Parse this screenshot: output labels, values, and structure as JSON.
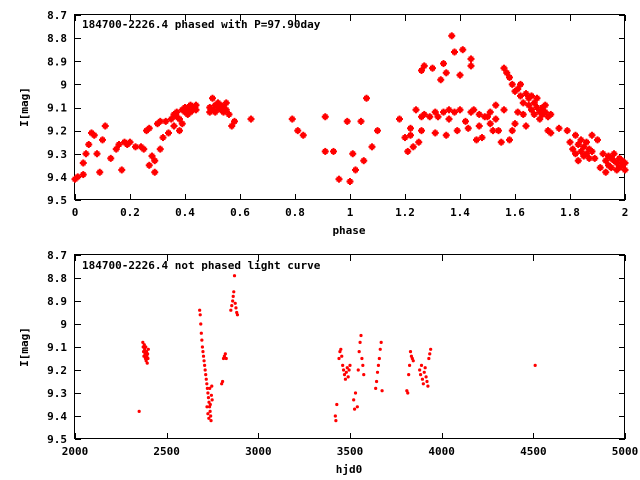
{
  "chart_data": [
    {
      "type": "scatter",
      "title": "184700-2226.4 phased with P=97.90day",
      "xlabel": "phase",
      "ylabel": "I[mag]",
      "xlim": [
        0,
        2
      ],
      "ylim": [
        9.5,
        8.7
      ],
      "y_inverted": true,
      "x_ticks": [
        0,
        0.2,
        0.4,
        0.6,
        0.8,
        1,
        1.2,
        1.4,
        1.6,
        1.8,
        2
      ],
      "x_tick_labels": [
        "0",
        "0.2",
        "0.4",
        "0.6",
        "0.8",
        "1",
        "1.2",
        "1.4",
        "1.6",
        "1.8",
        "2"
      ],
      "y_ticks": [
        8.7,
        8.8,
        8.9,
        9.0,
        9.1,
        9.2,
        9.3,
        9.4,
        9.5
      ],
      "y_tick_labels": [
        "8.7",
        "8.8",
        "8.9",
        "9",
        "9.1",
        "9.2",
        "9.3",
        "9.4",
        "9.5"
      ],
      "grid": false,
      "marker_color": "#ff0000",
      "marker": "plus",
      "points": [
        [
          0.0,
          9.41
        ],
        [
          0.01,
          9.4
        ],
        [
          0.03,
          9.39
        ],
        [
          0.03,
          9.34
        ],
        [
          0.04,
          9.3
        ],
        [
          0.05,
          9.26
        ],
        [
          0.06,
          9.21
        ],
        [
          0.07,
          9.22
        ],
        [
          0.08,
          9.3
        ],
        [
          0.09,
          9.38
        ],
        [
          0.1,
          9.24
        ],
        [
          0.11,
          9.18
        ],
        [
          0.13,
          9.32
        ],
        [
          0.15,
          9.28
        ],
        [
          0.16,
          9.26
        ],
        [
          0.17,
          9.37
        ],
        [
          0.18,
          9.25
        ],
        [
          0.19,
          9.26
        ],
        [
          0.2,
          9.25
        ],
        [
          0.22,
          9.27
        ],
        [
          0.24,
          9.27
        ],
        [
          0.25,
          9.28
        ],
        [
          0.26,
          9.2
        ],
        [
          0.27,
          9.19
        ],
        [
          0.27,
          9.35
        ],
        [
          0.28,
          9.31
        ],
        [
          0.29,
          9.33
        ],
        [
          0.29,
          9.38
        ],
        [
          0.3,
          9.17
        ],
        [
          0.31,
          9.16
        ],
        [
          0.31,
          9.28
        ],
        [
          0.32,
          9.23
        ],
        [
          0.33,
          9.16
        ],
        [
          0.34,
          9.21
        ],
        [
          0.35,
          9.15
        ],
        [
          0.36,
          9.13
        ],
        [
          0.36,
          9.18
        ],
        [
          0.37,
          9.12
        ],
        [
          0.37,
          9.14
        ],
        [
          0.38,
          9.15
        ],
        [
          0.38,
          9.2
        ],
        [
          0.39,
          9.17
        ],
        [
          0.39,
          9.11
        ],
        [
          0.4,
          9.1
        ],
        [
          0.4,
          9.12
        ],
        [
          0.41,
          9.1
        ],
        [
          0.41,
          9.13
        ],
        [
          0.42,
          9.09
        ],
        [
          0.42,
          9.12
        ],
        [
          0.43,
          9.1
        ],
        [
          0.43,
          9.11
        ],
        [
          0.44,
          9.09
        ],
        [
          0.44,
          9.11
        ],
        [
          0.49,
          9.1
        ],
        [
          0.49,
          9.12
        ],
        [
          0.5,
          9.06
        ],
        [
          0.5,
          9.11
        ],
        [
          0.51,
          9.09
        ],
        [
          0.51,
          9.12
        ],
        [
          0.52,
          9.1
        ],
        [
          0.52,
          9.08
        ],
        [
          0.53,
          9.09
        ],
        [
          0.53,
          9.11
        ],
        [
          0.54,
          9.1
        ],
        [
          0.54,
          9.12
        ],
        [
          0.55,
          9.08
        ],
        [
          0.55,
          9.11
        ],
        [
          0.56,
          9.13
        ],
        [
          0.57,
          9.18
        ],
        [
          0.58,
          9.16
        ],
        [
          0.64,
          9.15
        ],
        [
          0.79,
          9.15
        ],
        [
          0.81,
          9.2
        ],
        [
          0.83,
          9.22
        ],
        [
          0.91,
          9.29
        ],
        [
          0.91,
          9.14
        ],
        [
          0.94,
          9.29
        ],
        [
          0.96,
          9.41
        ],
        [
          0.99,
          9.16
        ],
        [
          1.0,
          9.42
        ],
        [
          1.01,
          9.3
        ],
        [
          1.02,
          9.37
        ],
        [
          1.04,
          9.16
        ],
        [
          1.05,
          9.33
        ],
        [
          1.06,
          9.06
        ],
        [
          1.08,
          9.27
        ],
        [
          1.1,
          9.2
        ],
        [
          1.18,
          9.15
        ],
        [
          1.2,
          9.23
        ],
        [
          1.21,
          9.29
        ],
        [
          1.22,
          9.19
        ],
        [
          1.22,
          9.22
        ],
        [
          1.23,
          9.27
        ],
        [
          1.24,
          9.11
        ],
        [
          1.25,
          9.25
        ],
        [
          1.26,
          9.2
        ],
        [
          1.26,
          9.14
        ],
        [
          1.26,
          8.94
        ],
        [
          1.27,
          9.13
        ],
        [
          1.27,
          8.92
        ],
        [
          1.29,
          9.14
        ],
        [
          1.3,
          8.93
        ],
        [
          1.31,
          9.21
        ],
        [
          1.31,
          9.12
        ],
        [
          1.32,
          9.14
        ],
        [
          1.33,
          8.98
        ],
        [
          1.34,
          8.91
        ],
        [
          1.34,
          9.12
        ],
        [
          1.35,
          9.22
        ],
        [
          1.35,
          8.95
        ],
        [
          1.36,
          9.15
        ],
        [
          1.36,
          9.11
        ],
        [
          1.37,
          8.79
        ],
        [
          1.38,
          9.12
        ],
        [
          1.38,
          8.86
        ],
        [
          1.39,
          9.2
        ],
        [
          1.4,
          8.96
        ],
        [
          1.4,
          9.11
        ],
        [
          1.41,
          8.85
        ],
        [
          1.42,
          9.16
        ],
        [
          1.43,
          9.19
        ],
        [
          1.44,
          8.89
        ],
        [
          1.44,
          9.12
        ],
        [
          1.44,
          8.92
        ],
        [
          1.45,
          9.11
        ],
        [
          1.46,
          9.24
        ],
        [
          1.47,
          9.18
        ],
        [
          1.47,
          9.13
        ],
        [
          1.48,
          9.23
        ],
        [
          1.49,
          9.14
        ],
        [
          1.5,
          9.14
        ],
        [
          1.51,
          9.12
        ],
        [
          1.51,
          9.17
        ],
        [
          1.52,
          9.2
        ],
        [
          1.53,
          9.15
        ],
        [
          1.53,
          9.09
        ],
        [
          1.54,
          9.2
        ],
        [
          1.55,
          9.25
        ],
        [
          1.56,
          9.11
        ],
        [
          1.56,
          8.93
        ],
        [
          1.57,
          8.95
        ],
        [
          1.58,
          9.24
        ],
        [
          1.58,
          8.97
        ],
        [
          1.59,
          9.2
        ],
        [
          1.59,
          9.0
        ],
        [
          1.6,
          9.03
        ],
        [
          1.6,
          9.17
        ],
        [
          1.61,
          9.02
        ],
        [
          1.61,
          9.12
        ],
        [
          1.62,
          9.0
        ],
        [
          1.62,
          9.05
        ],
        [
          1.63,
          9.08
        ],
        [
          1.63,
          9.13
        ],
        [
          1.64,
          9.04
        ],
        [
          1.64,
          9.18
        ],
        [
          1.65,
          9.06
        ],
        [
          1.65,
          9.09
        ],
        [
          1.66,
          9.05
        ],
        [
          1.66,
          9.11
        ],
        [
          1.67,
          9.08
        ],
        [
          1.67,
          9.13
        ],
        [
          1.68,
          9.1
        ],
        [
          1.68,
          9.06
        ],
        [
          1.69,
          9.12
        ],
        [
          1.69,
          9.15
        ],
        [
          1.7,
          9.1
        ],
        [
          1.7,
          9.13
        ],
        [
          1.71,
          9.09
        ],
        [
          1.71,
          9.12
        ],
        [
          1.72,
          9.14
        ],
        [
          1.72,
          9.2
        ],
        [
          1.73,
          9.13
        ],
        [
          1.73,
          9.21
        ],
        [
          1.76,
          9.19
        ],
        [
          1.79,
          9.2
        ],
        [
          1.8,
          9.25
        ],
        [
          1.81,
          9.28
        ],
        [
          1.82,
          9.22
        ],
        [
          1.82,
          9.3
        ],
        [
          1.83,
          9.26
        ],
        [
          1.83,
          9.33
        ],
        [
          1.84,
          9.24
        ],
        [
          1.84,
          9.29
        ],
        [
          1.85,
          9.27
        ],
        [
          1.85,
          9.31
        ],
        [
          1.86,
          9.25
        ],
        [
          1.86,
          9.3
        ],
        [
          1.87,
          9.28
        ],
        [
          1.87,
          9.32
        ],
        [
          1.88,
          9.22
        ],
        [
          1.88,
          9.29
        ],
        [
          1.89,
          9.32
        ],
        [
          1.9,
          9.24
        ],
        [
          1.91,
          9.36
        ],
        [
          1.92,
          9.3
        ],
        [
          1.93,
          9.33
        ],
        [
          1.93,
          9.38
        ],
        [
          1.94,
          9.31
        ],
        [
          1.94,
          9.35
        ],
        [
          1.95,
          9.32
        ],
        [
          1.95,
          9.36
        ],
        [
          1.96,
          9.33
        ],
        [
          1.96,
          9.3
        ],
        [
          1.97,
          9.34
        ],
        [
          1.97,
          9.37
        ],
        [
          1.98,
          9.32
        ],
        [
          1.98,
          9.36
        ],
        [
          1.99,
          9.33
        ],
        [
          1.99,
          9.35
        ],
        [
          2.0,
          9.34
        ],
        [
          2.0,
          9.37
        ]
      ]
    },
    {
      "type": "scatter",
      "title": "184700-2226.4 not phased light curve",
      "xlabel": "hjd0",
      "ylabel": "I[mag]",
      "xlim": [
        2000,
        5000
      ],
      "ylim": [
        9.5,
        8.7
      ],
      "y_inverted": true,
      "x_ticks": [
        2000,
        2500,
        3000,
        3500,
        4000,
        4500,
        5000
      ],
      "x_tick_labels": [
        "2000",
        "2500",
        "3000",
        "3500",
        "4000",
        "4500",
        "5000"
      ],
      "y_ticks": [
        8.7,
        8.8,
        8.9,
        9.0,
        9.1,
        9.2,
        9.3,
        9.4,
        9.5
      ],
      "y_tick_labels": [
        "8.7",
        "8.8",
        "8.9",
        "9",
        "9.1",
        "9.2",
        "9.3",
        "9.4",
        "9.5"
      ],
      "grid": false,
      "marker_color": "#ff0000",
      "marker": "dot",
      "points": [
        [
          2350,
          9.38
        ],
        [
          2370,
          9.08
        ],
        [
          2372,
          9.1
        ],
        [
          2374,
          9.12
        ],
        [
          2376,
          9.14
        ],
        [
          2378,
          9.09
        ],
        [
          2380,
          9.11
        ],
        [
          2382,
          9.13
        ],
        [
          2384,
          9.15
        ],
        [
          2386,
          9.1
        ],
        [
          2388,
          9.16
        ],
        [
          2390,
          9.12
        ],
        [
          2392,
          9.14
        ],
        [
          2394,
          9.17
        ],
        [
          2396,
          9.13
        ],
        [
          2398,
          9.15
        ],
        [
          2400,
          9.11
        ],
        [
          2680,
          8.94
        ],
        [
          2683,
          8.96
        ],
        [
          2686,
          9.0
        ],
        [
          2689,
          9.04
        ],
        [
          2692,
          9.07
        ],
        [
          2695,
          9.1
        ],
        [
          2698,
          9.12
        ],
        [
          2701,
          9.14
        ],
        [
          2704,
          9.16
        ],
        [
          2707,
          9.18
        ],
        [
          2710,
          9.2
        ],
        [
          2713,
          9.22
        ],
        [
          2716,
          9.24
        ],
        [
          2719,
          9.26
        ],
        [
          2722,
          9.28
        ],
        [
          2725,
          9.3
        ],
        [
          2728,
          9.32
        ],
        [
          2731,
          9.34
        ],
        [
          2734,
          9.36
        ],
        [
          2737,
          9.38
        ],
        [
          2740,
          9.4
        ],
        [
          2742,
          9.42
        ],
        [
          2744,
          9.31
        ],
        [
          2746,
          9.27
        ],
        [
          2748,
          9.33
        ],
        [
          2720,
          9.36
        ],
        [
          2725,
          9.39
        ],
        [
          2730,
          9.41
        ],
        [
          2735,
          9.28
        ],
        [
          2738,
          9.35
        ],
        [
          2800,
          9.26
        ],
        [
          2805,
          9.25
        ],
        [
          2810,
          9.15
        ],
        [
          2815,
          9.14
        ],
        [
          2820,
          9.13
        ],
        [
          2825,
          9.15
        ],
        [
          2850,
          8.94
        ],
        [
          2855,
          8.92
        ],
        [
          2860,
          8.9
        ],
        [
          2863,
          8.88
        ],
        [
          2866,
          8.86
        ],
        [
          2870,
          8.79
        ],
        [
          2874,
          8.91
        ],
        [
          2878,
          8.93
        ],
        [
          2882,
          8.95
        ],
        [
          2886,
          8.96
        ],
        [
          3420,
          9.4
        ],
        [
          3423,
          9.42
        ],
        [
          3428,
          9.35
        ],
        [
          3440,
          9.15
        ],
        [
          3445,
          9.12
        ],
        [
          3450,
          9.11
        ],
        [
          3455,
          9.14
        ],
        [
          3460,
          9.18
        ],
        [
          3465,
          9.2
        ],
        [
          3470,
          9.22
        ],
        [
          3475,
          9.24
        ],
        [
          3480,
          9.21
        ],
        [
          3485,
          9.19
        ],
        [
          3490,
          9.23
        ],
        [
          3495,
          9.2
        ],
        [
          3500,
          9.18
        ],
        [
          3520,
          9.33
        ],
        [
          3525,
          9.37
        ],
        [
          3530,
          9.3
        ],
        [
          3540,
          9.36
        ],
        [
          3545,
          9.2
        ],
        [
          3550,
          9.12
        ],
        [
          3555,
          9.08
        ],
        [
          3560,
          9.05
        ],
        [
          3565,
          9.15
        ],
        [
          3570,
          9.18
        ],
        [
          3575,
          9.22
        ],
        [
          3640,
          9.28
        ],
        [
          3645,
          9.25
        ],
        [
          3650,
          9.21
        ],
        [
          3655,
          9.18
        ],
        [
          3660,
          9.15
        ],
        [
          3665,
          9.11
        ],
        [
          3670,
          9.08
        ],
        [
          3675,
          9.29
        ],
        [
          3810,
          9.29
        ],
        [
          3815,
          9.3
        ],
        [
          3820,
          9.22
        ],
        [
          3825,
          9.18
        ],
        [
          3830,
          9.12
        ],
        [
          3835,
          9.14
        ],
        [
          3840,
          9.15
        ],
        [
          3845,
          9.16
        ],
        [
          3880,
          9.2
        ],
        [
          3885,
          9.22
        ],
        [
          3890,
          9.18
        ],
        [
          3895,
          9.24
        ],
        [
          3900,
          9.26
        ],
        [
          3905,
          9.21
        ],
        [
          3910,
          9.19
        ],
        [
          3915,
          9.23
        ],
        [
          3920,
          9.25
        ],
        [
          3925,
          9.27
        ],
        [
          3930,
          9.15
        ],
        [
          3935,
          9.13
        ],
        [
          3940,
          9.11
        ],
        [
          4510,
          9.18
        ]
      ]
    }
  ]
}
